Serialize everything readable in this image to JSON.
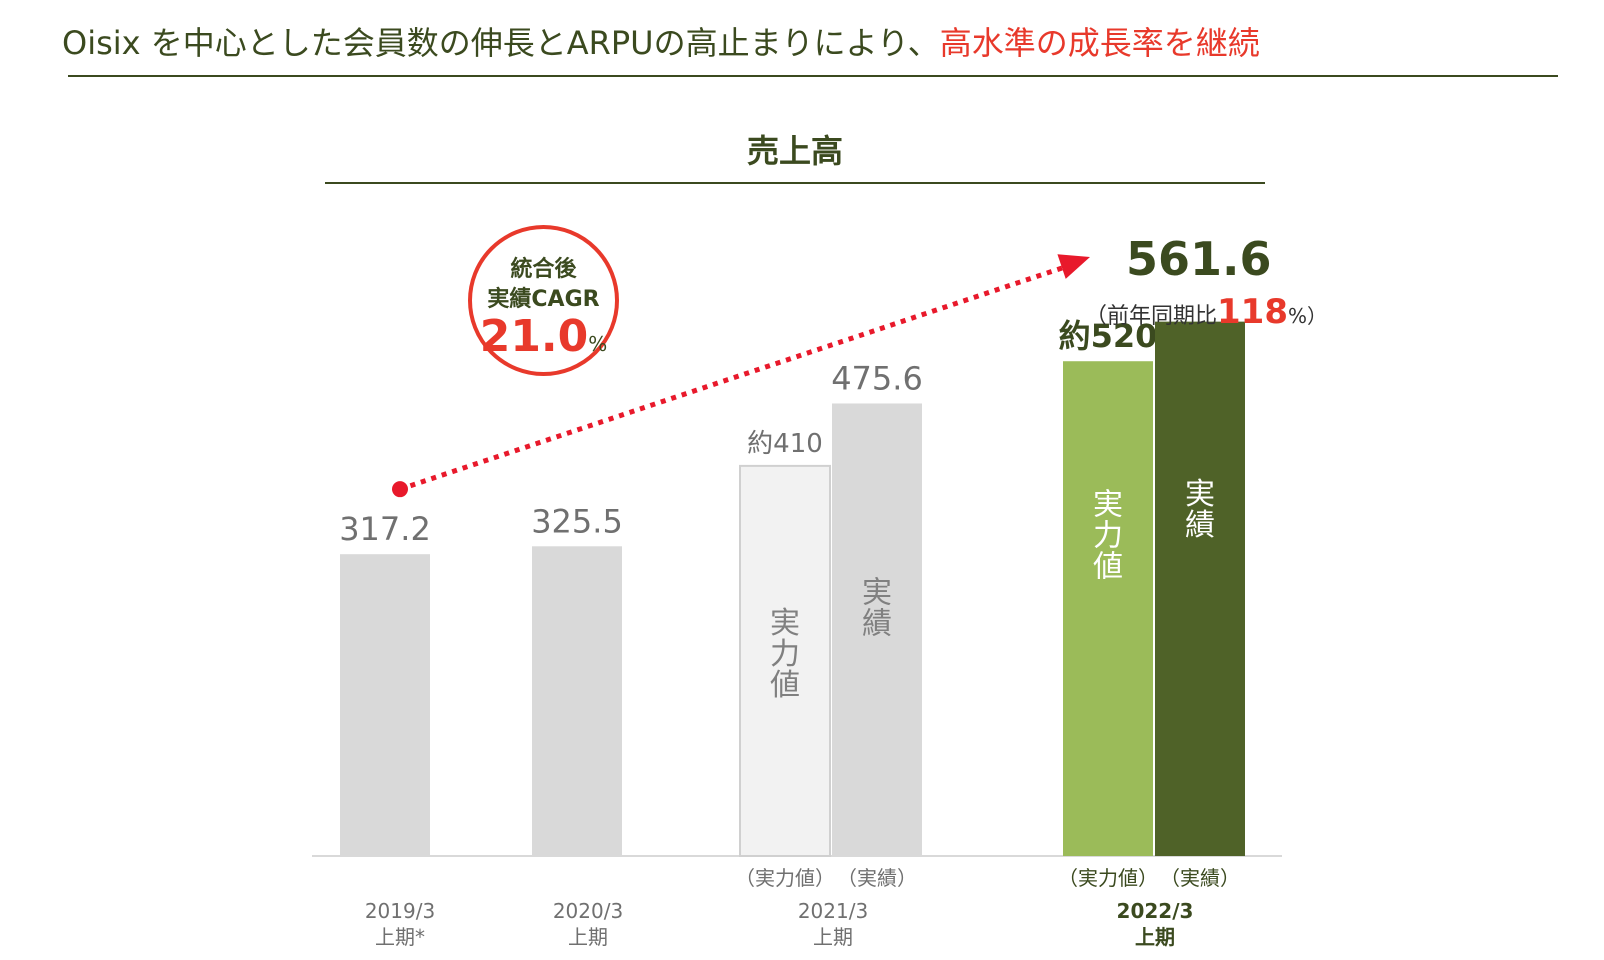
{
  "headline": {
    "main": "Oisix を中心とした会員数の伸長とARPUの高止まりにより、",
    "highlight": "高水準の成長率を継続"
  },
  "cagr": {
    "line1": "統合後",
    "line2": "実績CAGR",
    "value": "21.0",
    "unit": "%"
  },
  "latest": {
    "value": "561.6",
    "yoy_prefix": "（前年同期比",
    "yoy_value": "118",
    "yoy_suffix": "%）"
  },
  "chart_data": {
    "type": "bar",
    "title": "売上高",
    "xlabel": "",
    "ylabel": "",
    "ylim": [
      0,
      600
    ],
    "colors": {
      "gray": "#d9d9d9",
      "light_gray": "#f2f2f2",
      "light_gray_border": "#d0d0d0",
      "light_green": "#9bbb59",
      "dark_green": "#4f6228",
      "arrow_red": "#e8192b",
      "axis": "#d9d9d9"
    },
    "categories": [
      {
        "label_line1": "2019/3",
        "label_line2": "上期*",
        "bold": false
      },
      {
        "label_line1": "2020/3",
        "label_line2": "上期",
        "bold": false
      },
      {
        "label_line1": "2021/3",
        "label_line2": "上期",
        "bold": false,
        "sub_labels": [
          "（実力値）",
          "（実績）"
        ]
      },
      {
        "label_line1": "2022/3",
        "label_line2": "上期",
        "bold": true,
        "sub_labels": [
          "（実力値）",
          "（実績）"
        ]
      }
    ],
    "bars": [
      {
        "category": 0,
        "value": 317.2,
        "label": "317.2",
        "style": "gray",
        "inner_text": ""
      },
      {
        "category": 1,
        "value": 325.5,
        "label": "325.5",
        "style": "gray",
        "inner_text": ""
      },
      {
        "category": 2,
        "value": 410,
        "label": "約410",
        "style": "light_gray",
        "inner_text": "実力値"
      },
      {
        "category": 2,
        "value": 475.6,
        "label": "475.6",
        "style": "gray",
        "inner_text": "実績"
      },
      {
        "category": 3,
        "value": 520,
        "label": "約520",
        "style": "light_green",
        "inner_text": "実力値"
      },
      {
        "category": 3,
        "value": 561.6,
        "label": "",
        "style": "dark_green",
        "inner_text": "実績"
      }
    ],
    "trend_arrow": {
      "from_value": 317.2,
      "to_value": 561.6,
      "style": "dotted"
    }
  }
}
